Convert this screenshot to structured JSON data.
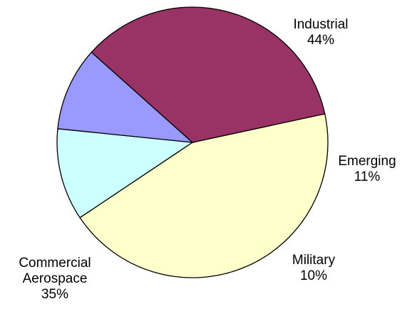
{
  "chart_data": {
    "type": "pie",
    "title": "",
    "slices": [
      {
        "name": "Industrial",
        "value": 44,
        "label": "44%",
        "color": "#FFFFCC"
      },
      {
        "name": "Emerging",
        "value": 11,
        "label": "11%",
        "color": "#CCFFFF"
      },
      {
        "name": "Military",
        "value": 10,
        "label": "10%",
        "color": "#9999FF"
      },
      {
        "name": "Commercial Aerospace",
        "value": 35,
        "label": "35%",
        "color": "#993366"
      }
    ],
    "legend": "none"
  }
}
